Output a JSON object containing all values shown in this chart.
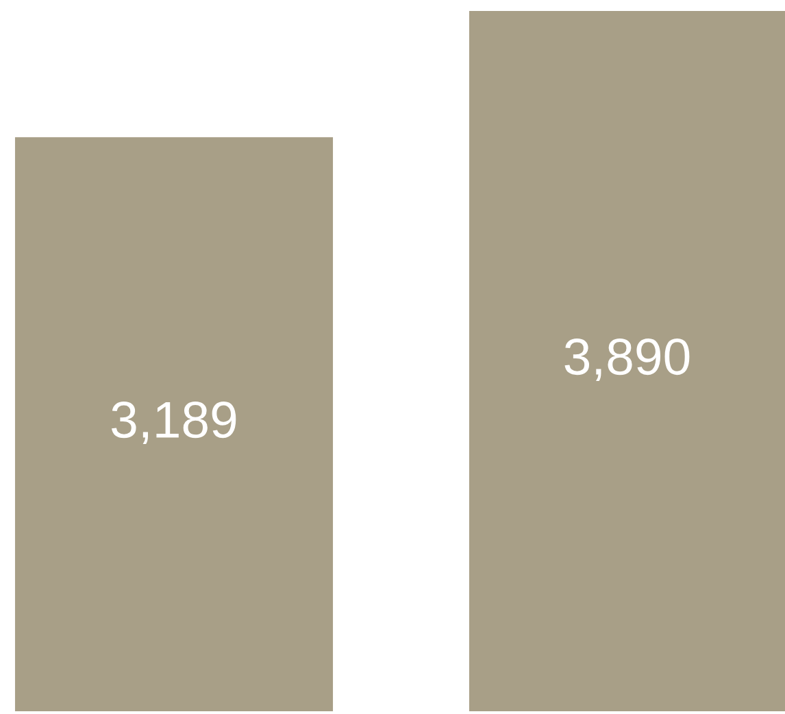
{
  "chart_data": {
    "type": "bar",
    "categories": [
      null,
      null
    ],
    "values": [
      3189,
      3890
    ],
    "color": "#a89f87",
    "value_labels": [
      "3,189",
      "3,890"
    ]
  }
}
